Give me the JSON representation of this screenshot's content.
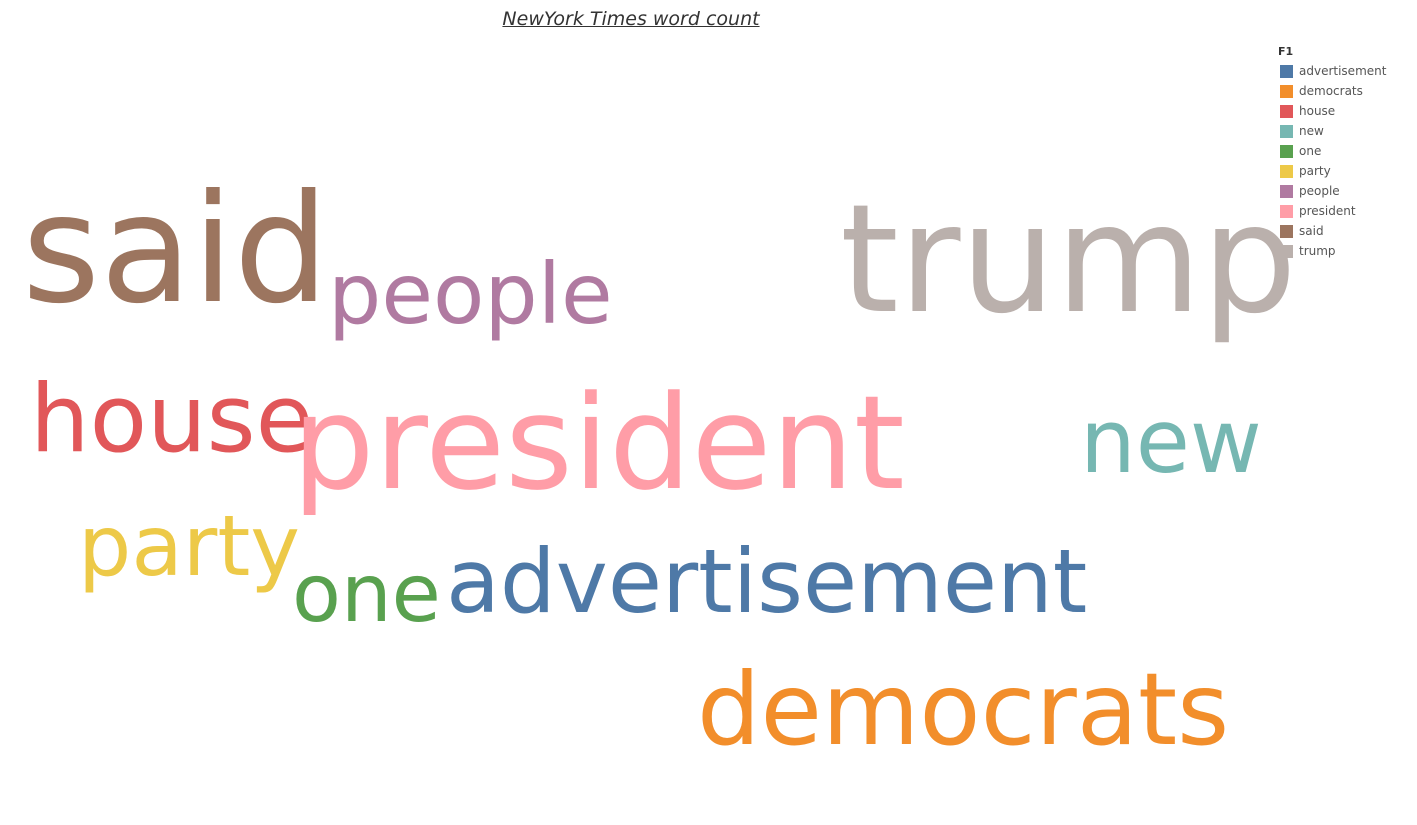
{
  "chart_data": {
    "type": "word-cloud",
    "title": "NewYork Times word count",
    "legend": {
      "title": "F1",
      "placement": "top-right"
    },
    "words": [
      {
        "text": "advertisement",
        "color": "#4e79a7",
        "rank": 6
      },
      {
        "text": "democrats",
        "color": "#f28e2b",
        "rank": 5
      },
      {
        "text": "house",
        "color": "#e15759",
        "rank": 7
      },
      {
        "text": "new",
        "color": "#76b7b2",
        "rank": 8
      },
      {
        "text": "one",
        "color": "#59a14f",
        "rank": 9
      },
      {
        "text": "party",
        "color": "#edc948",
        "rank": 10
      },
      {
        "text": "people",
        "color": "#b07aa1",
        "rank": 4
      },
      {
        "text": "president",
        "color": "#ff9da7",
        "rank": 3
      },
      {
        "text": "said",
        "color": "#9c755f",
        "rank": 1
      },
      {
        "text": "trump",
        "color": "#bab0ac",
        "rank": 2
      }
    ]
  }
}
